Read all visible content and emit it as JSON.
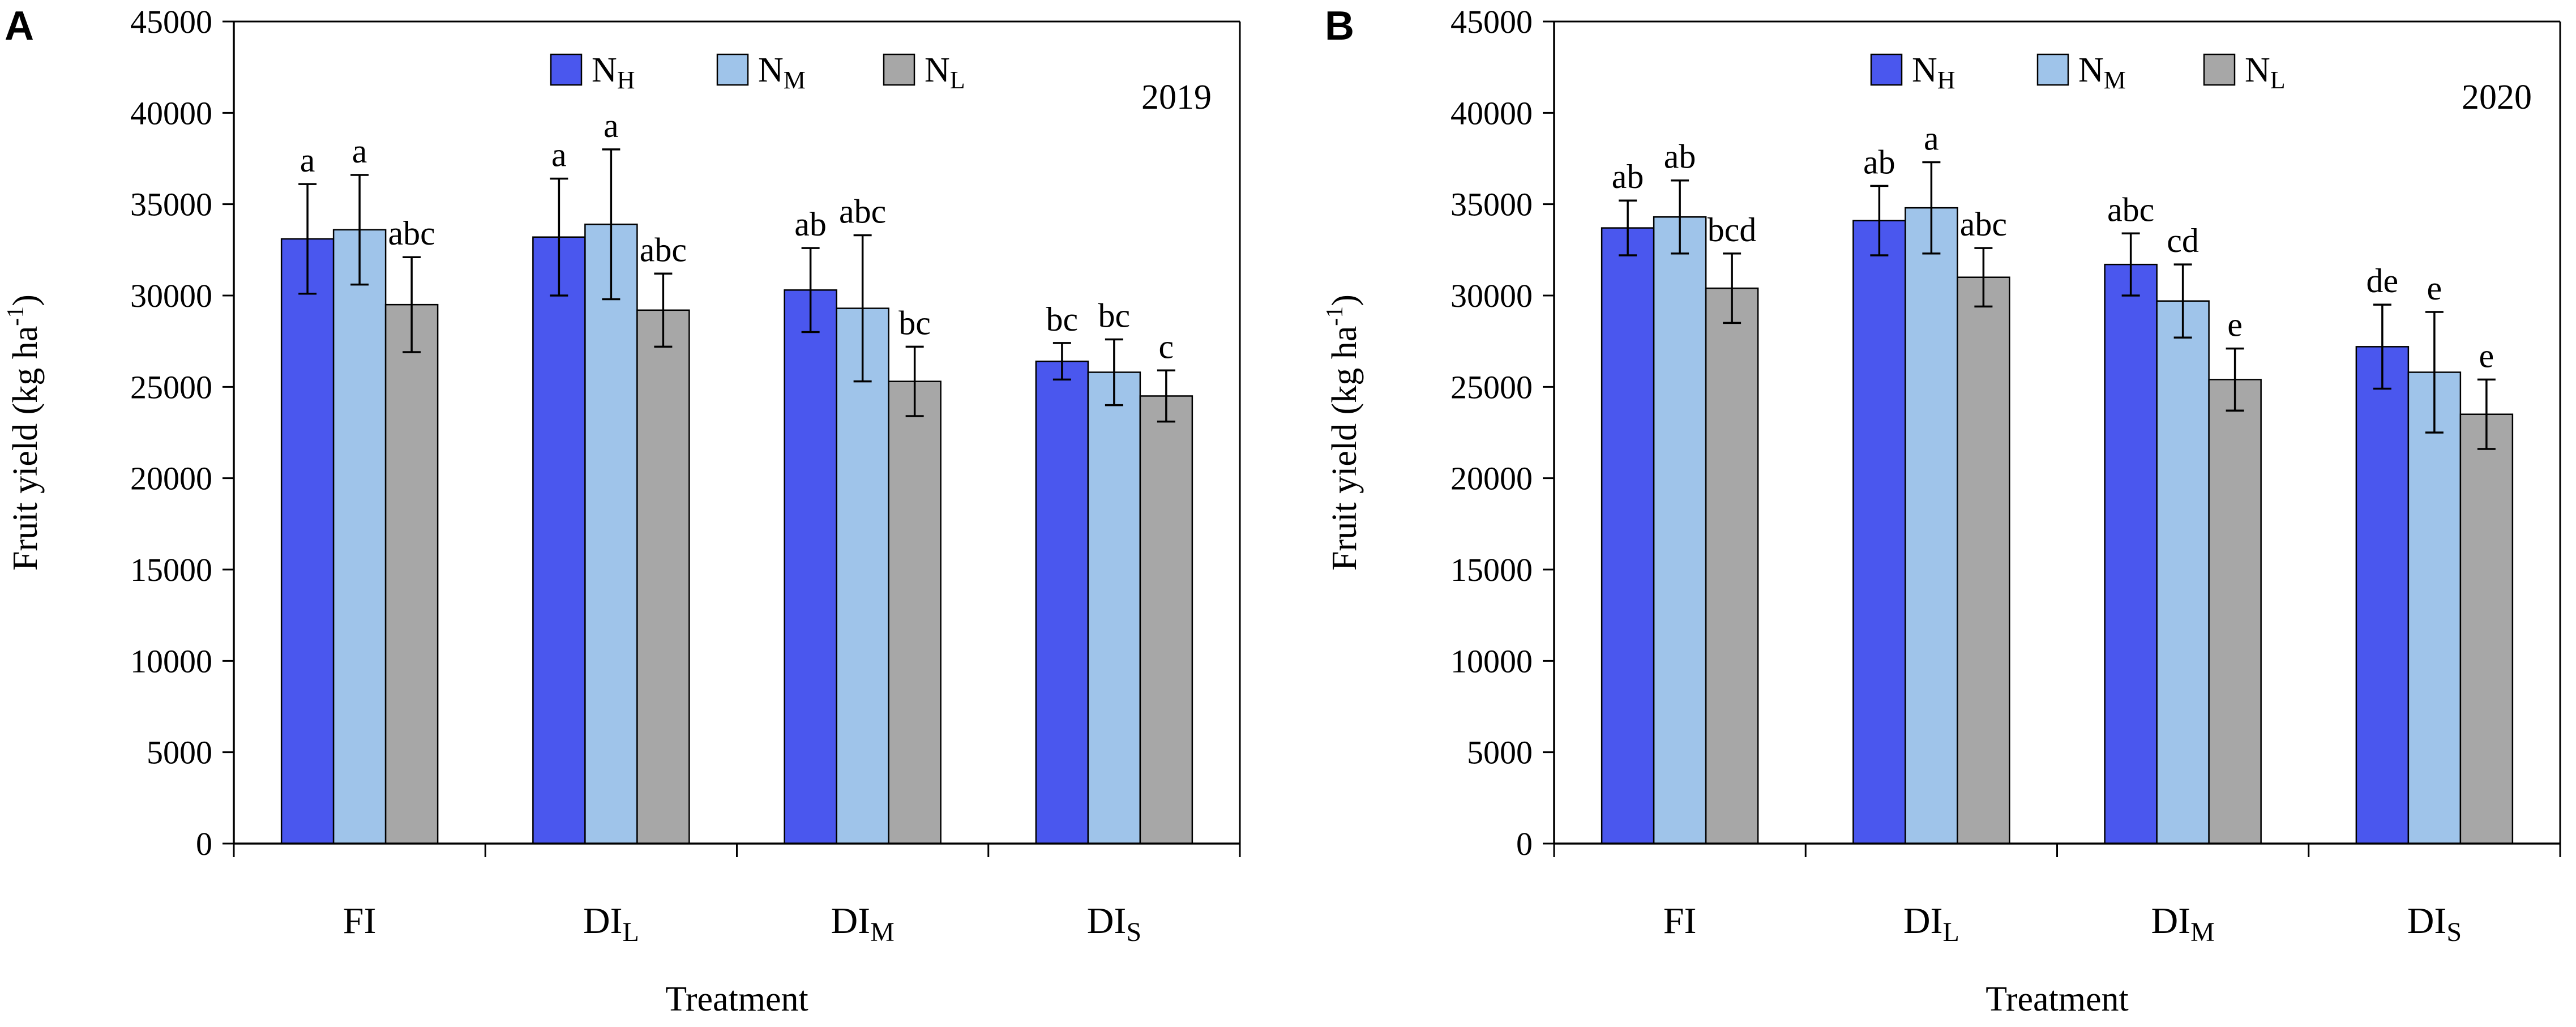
{
  "chart_data": [
    {
      "type": "bar",
      "panel_label": "A",
      "year_label": "2019",
      "xlabel": "Treatment",
      "ylabel": "Fruit yield (kg ha",
      "ylabel_sup": "-1",
      "ylabel_close": ")",
      "ylim": [
        0,
        45000
      ],
      "yticks": [
        0,
        5000,
        10000,
        15000,
        20000,
        25000,
        30000,
        35000,
        40000,
        45000
      ],
      "ytick_labels": [
        "0",
        "5000",
        "10000",
        "15000",
        "20000",
        "25000",
        "30000",
        "35000",
        "40000",
        "45000"
      ],
      "categories": [
        {
          "base": "FI",
          "sub": ""
        },
        {
          "base": "DI",
          "sub": "L"
        },
        {
          "base": "DI",
          "sub": "M"
        },
        {
          "base": "DI",
          "sub": "S"
        }
      ],
      "legend_placement": "top-center",
      "series": [
        {
          "name": "NH",
          "base": "N",
          "sub": "H",
          "color": "#4a57ee",
          "values": [
            33100,
            33200,
            30300,
            26400
          ],
          "errors": [
            3000,
            3200,
            2300,
            1000
          ],
          "letters": [
            "a",
            "a",
            "ab",
            "bc"
          ]
        },
        {
          "name": "NM",
          "base": "N",
          "sub": "M",
          "color": "#9fc4ea",
          "values": [
            33600,
            33900,
            29300,
            25800
          ],
          "errors": [
            3000,
            4100,
            4000,
            1800
          ],
          "letters": [
            "a",
            "a",
            "abc",
            "bc"
          ]
        },
        {
          "name": "NL",
          "base": "N",
          "sub": "L",
          "color": "#a7a7a7",
          "values": [
            29500,
            29200,
            25300,
            24500
          ],
          "errors": [
            2600,
            2000,
            1900,
            1400
          ],
          "letters": [
            "abc",
            "abc",
            "bc",
            "c"
          ]
        }
      ]
    },
    {
      "type": "bar",
      "panel_label": "B",
      "year_label": "2020",
      "xlabel": "Treatment",
      "ylabel": "Fruit yield (kg ha",
      "ylabel_sup": "-1",
      "ylabel_close": ")",
      "ylim": [
        0,
        45000
      ],
      "yticks": [
        0,
        5000,
        10000,
        15000,
        20000,
        25000,
        30000,
        35000,
        40000,
        45000
      ],
      "ytick_labels": [
        "0",
        "5000",
        "10000",
        "15000",
        "20000",
        "25000",
        "30000",
        "35000",
        "40000",
        "45000"
      ],
      "categories": [
        {
          "base": "FI",
          "sub": ""
        },
        {
          "base": "DI",
          "sub": "L"
        },
        {
          "base": "DI",
          "sub": "M"
        },
        {
          "base": "DI",
          "sub": "S"
        }
      ],
      "legend_placement": "top-center",
      "series": [
        {
          "name": "NH",
          "base": "N",
          "sub": "H",
          "color": "#4a57ee",
          "values": [
            33700,
            34100,
            31700,
            27200
          ],
          "errors": [
            1500,
            1900,
            1700,
            2300
          ],
          "letters": [
            "ab",
            "ab",
            "abc",
            "de"
          ]
        },
        {
          "name": "NM",
          "base": "N",
          "sub": "M",
          "color": "#9fc4ea",
          "values": [
            34300,
            34800,
            29700,
            25800
          ],
          "errors": [
            2000,
            2500,
            2000,
            3300
          ],
          "letters": [
            "ab",
            "a",
            "cd",
            "e"
          ]
        },
        {
          "name": "NL",
          "base": "N",
          "sub": "L",
          "color": "#a7a7a7",
          "values": [
            30400,
            31000,
            25400,
            23500
          ],
          "errors": [
            1900,
            1600,
            1700,
            1900
          ],
          "letters": [
            "bcd",
            "abc",
            "e",
            "e"
          ]
        }
      ]
    }
  ]
}
